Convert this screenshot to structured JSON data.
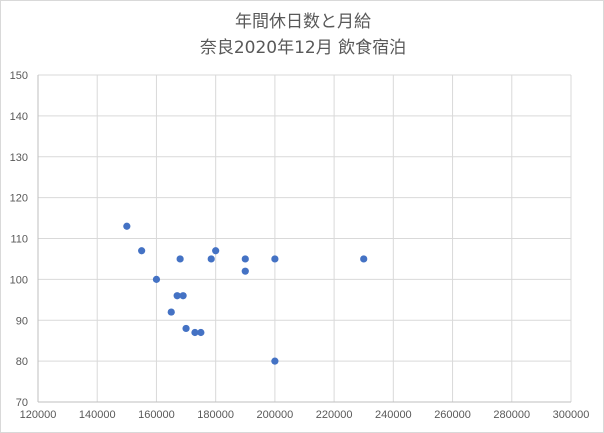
{
  "chart_data": {
    "type": "scatter",
    "title_lines": [
      "年間休日数と月給",
      "奈良2020年12月 飲食宿泊"
    ],
    "xlabel": "",
    "ylabel": "",
    "xlim": [
      120000,
      300000
    ],
    "ylim": [
      70,
      150
    ],
    "x_ticks": [
      "120000",
      "140000",
      "160000",
      "180000",
      "200000",
      "220000",
      "240000",
      "260000",
      "280000",
      "300000"
    ],
    "y_ticks": [
      "70",
      "80",
      "90",
      "100",
      "110",
      "120",
      "130",
      "140",
      "150"
    ],
    "grid": true,
    "legend": "none",
    "marker_color": "#4472c4",
    "points": [
      {
        "x": 150000,
        "y": 113
      },
      {
        "x": 155000,
        "y": 107
      },
      {
        "x": 160000,
        "y": 100
      },
      {
        "x": 165000,
        "y": 92
      },
      {
        "x": 167000,
        "y": 96
      },
      {
        "x": 168000,
        "y": 105
      },
      {
        "x": 169000,
        "y": 96
      },
      {
        "x": 170000,
        "y": 88
      },
      {
        "x": 173000,
        "y": 87
      },
      {
        "x": 175000,
        "y": 87
      },
      {
        "x": 178500,
        "y": 105
      },
      {
        "x": 180000,
        "y": 107
      },
      {
        "x": 190000,
        "y": 105
      },
      {
        "x": 190000,
        "y": 102
      },
      {
        "x": 200000,
        "y": 105
      },
      {
        "x": 200000,
        "y": 80
      },
      {
        "x": 230000,
        "y": 105
      }
    ]
  }
}
